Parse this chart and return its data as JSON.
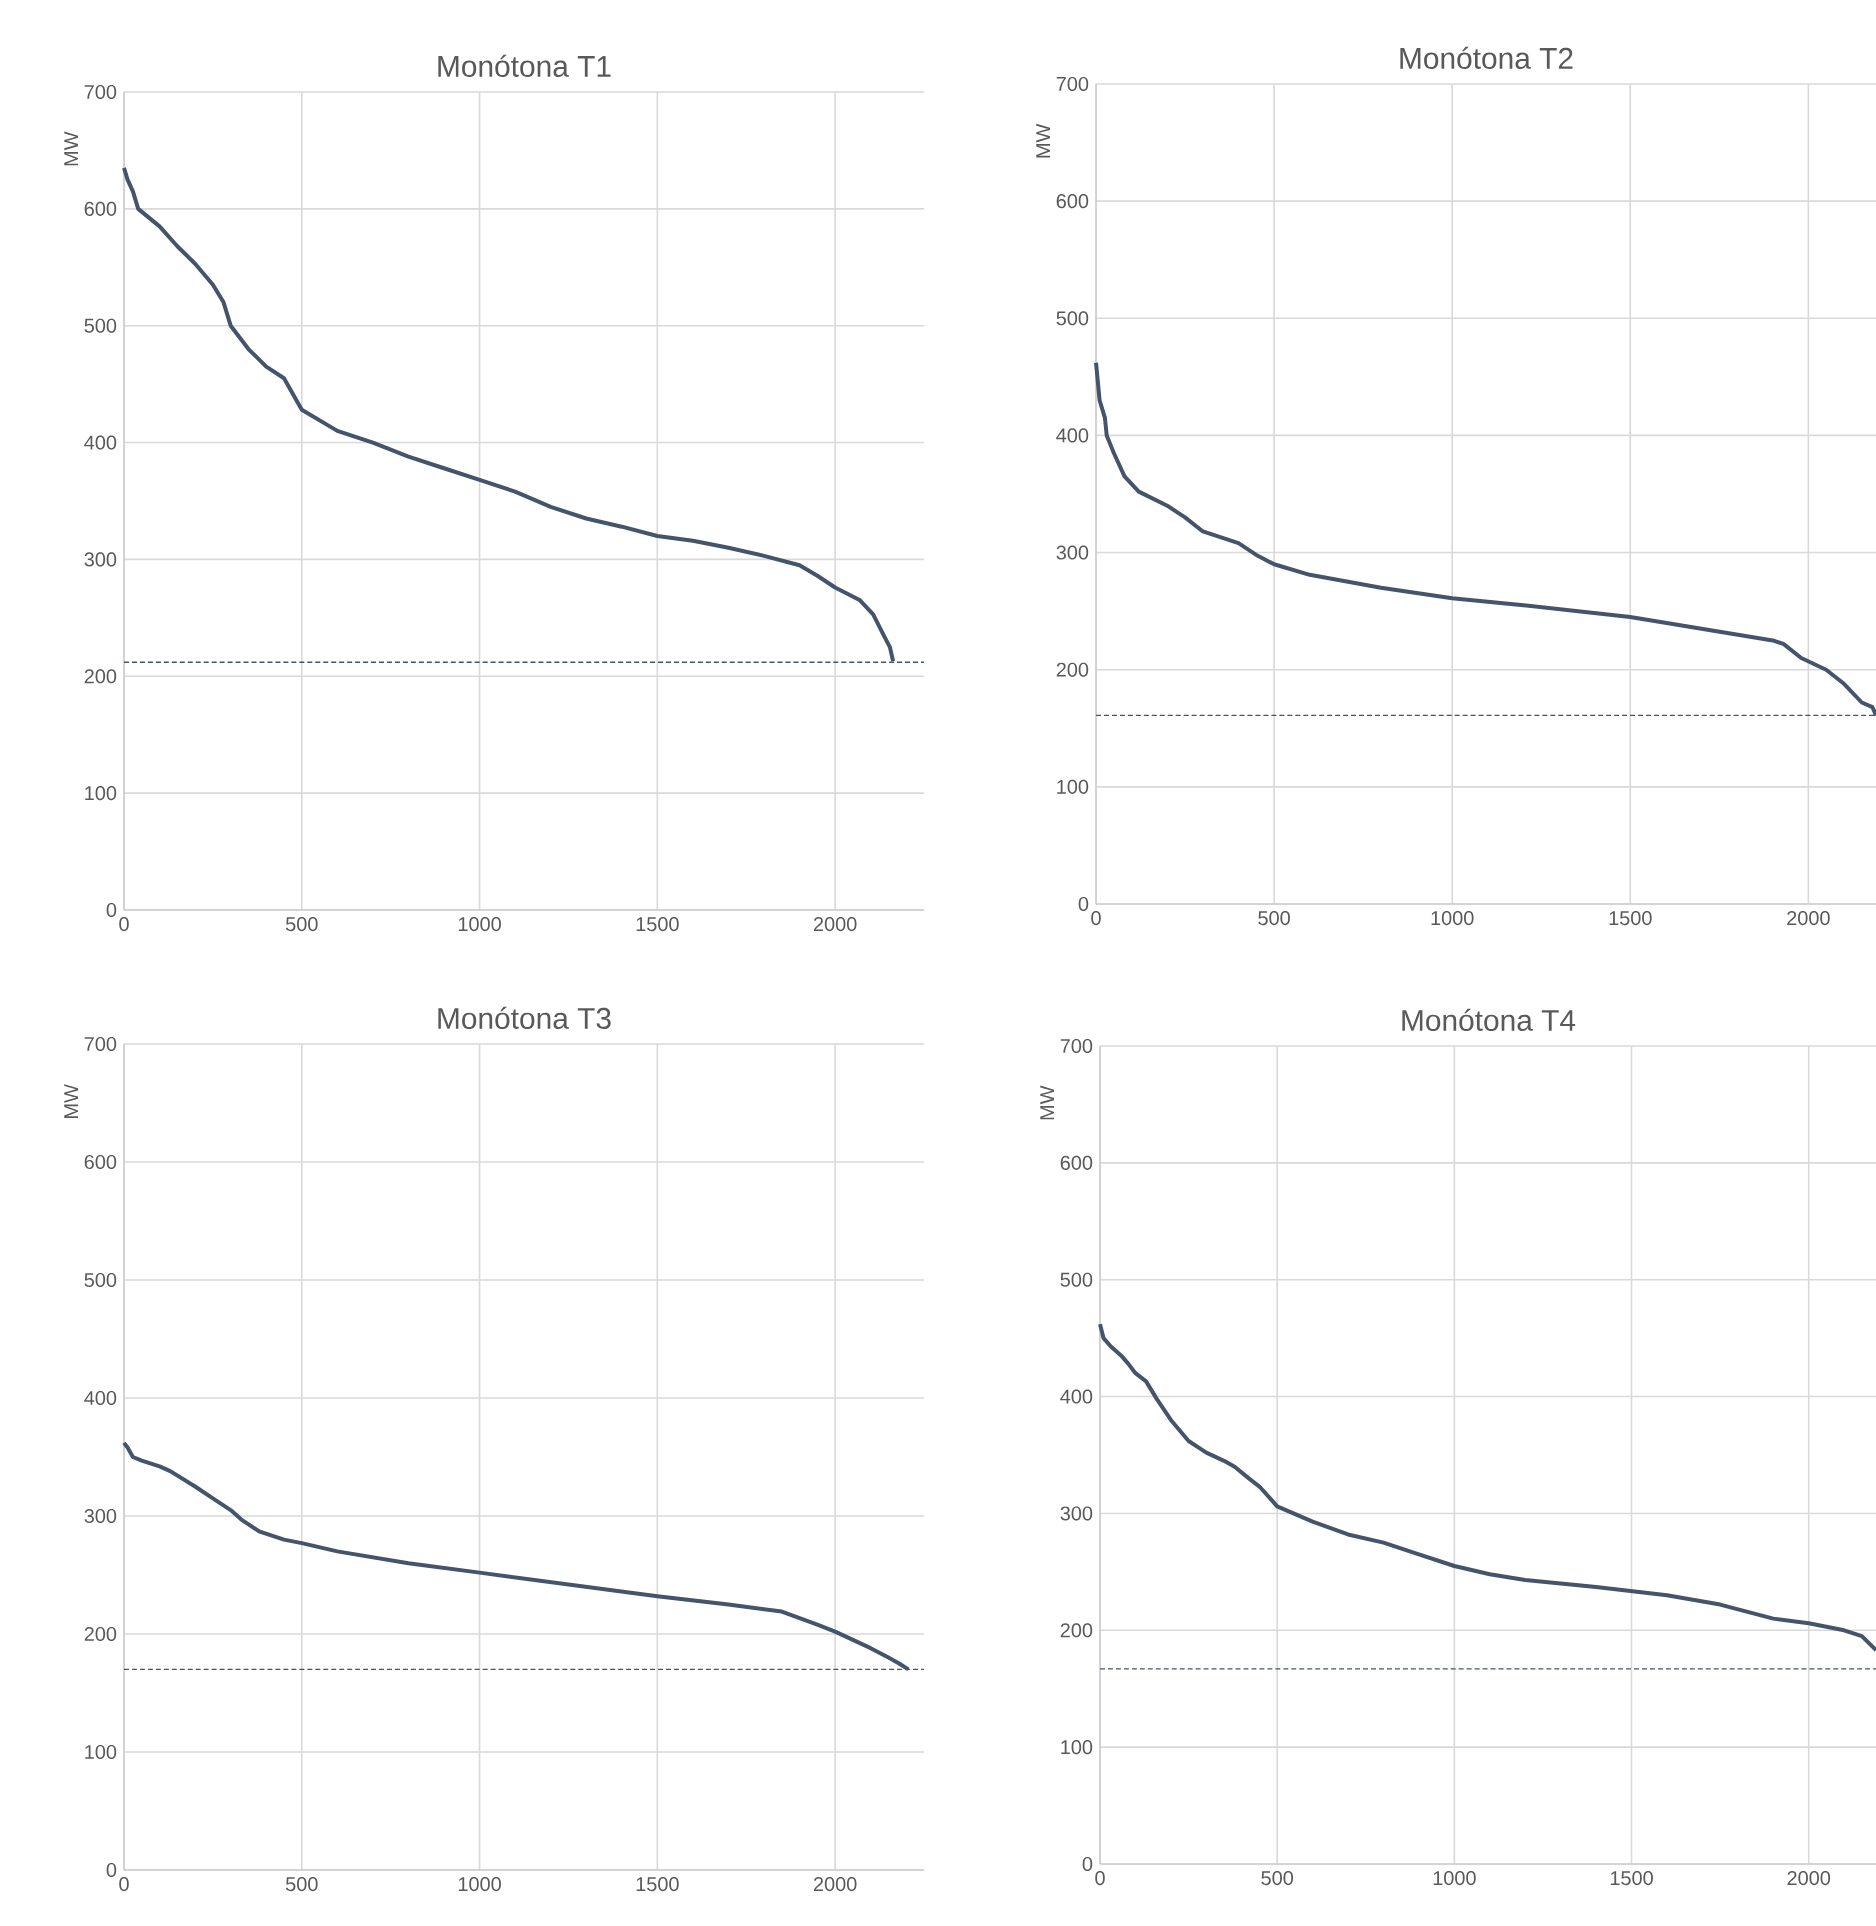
{
  "chart_data": [
    {
      "type": "line",
      "title": "Monótona T1",
      "ylabel": "MW",
      "xlim": [
        0,
        2250
      ],
      "ylim": [
        0,
        700
      ],
      "xticks": [
        0,
        500,
        1000,
        1500,
        2000
      ],
      "yticks": [
        0,
        100,
        200,
        300,
        400,
        500,
        600,
        700
      ],
      "grid": true,
      "series": [
        {
          "color": "#44546a",
          "x": [
            0,
            10,
            25,
            40,
            100,
            150,
            200,
            250,
            280,
            300,
            350,
            400,
            450,
            500,
            600,
            700,
            800,
            900,
            1000,
            1100,
            1200,
            1300,
            1400,
            1500,
            1600,
            1700,
            1800,
            1900,
            1950,
            2000,
            2070,
            2107,
            2135,
            2154,
            2163
          ],
          "values": [
            635,
            625,
            615,
            600,
            585,
            568,
            553,
            535,
            520,
            500,
            480,
            465,
            455,
            428,
            410,
            400,
            388,
            378,
            368,
            358,
            345,
            335,
            328,
            320,
            316,
            310,
            303,
            295,
            286,
            276,
            265,
            253,
            236,
            225,
            213
          ]
        }
      ],
      "ref_lines": [
        {
          "axis": "y",
          "value": 212,
          "color": "#44546a",
          "line_style": "dashed"
        }
      ]
    },
    {
      "type": "line",
      "title": "Monótona T2",
      "ylabel": "MW",
      "xlim": [
        0,
        2190
      ],
      "ylim": [
        0,
        700
      ],
      "xticks": [
        0,
        500,
        1000,
        1500,
        2000
      ],
      "yticks": [
        0,
        100,
        200,
        300,
        400,
        500,
        600,
        700
      ],
      "grid": true,
      "series": [
        {
          "color": "#44546a",
          "x": [
            0,
            10,
            25,
            30,
            50,
            80,
            120,
            200,
            250,
            300,
            400,
            450,
            500,
            600,
            800,
            1000,
            1200,
            1500,
            1700,
            1800,
            1900,
            1930,
            1980,
            2050,
            2100,
            2150,
            2180,
            2190
          ],
          "values": [
            462,
            430,
            415,
            400,
            385,
            365,
            352,
            340,
            330,
            318,
            308,
            298,
            290,
            281,
            270,
            261,
            255,
            245,
            235,
            230,
            225,
            222,
            210,
            200,
            188,
            172,
            168,
            161
          ]
        }
      ],
      "ref_lines": [
        {
          "axis": "y",
          "value": 161,
          "color": "#44546a",
          "line_style": "dashed"
        }
      ]
    },
    {
      "type": "line",
      "title": "Monótona T3",
      "ylabel": "MW",
      "xlim": [
        0,
        2250
      ],
      "ylim": [
        0,
        700
      ],
      "xticks": [
        0,
        500,
        1000,
        1500,
        2000
      ],
      "yticks": [
        0,
        100,
        200,
        300,
        400,
        500,
        600,
        700
      ],
      "grid": true,
      "series": [
        {
          "color": "#44546a",
          "x": [
            0,
            10,
            25,
            50,
            100,
            130,
            200,
            250,
            300,
            330,
            380,
            450,
            500,
            600,
            800,
            1000,
            1200,
            1500,
            1700,
            1850,
            1950,
            2000,
            2050,
            2100,
            2150,
            2180,
            2206
          ],
          "values": [
            362,
            358,
            350,
            347,
            342,
            338,
            325,
            315,
            305,
            297,
            287,
            280,
            277,
            270,
            260,
            252,
            244,
            232,
            225,
            219,
            208,
            202,
            195,
            188,
            180,
            175,
            170
          ]
        }
      ],
      "ref_lines": [
        {
          "axis": "y",
          "value": 170,
          "color": "#44546a",
          "line_style": "dashed"
        }
      ]
    },
    {
      "type": "line",
      "title": "Monótona T4",
      "ylabel": "MW",
      "xlim": [
        0,
        2190
      ],
      "ylim": [
        0,
        700
      ],
      "xticks": [
        0,
        500,
        1000,
        1500,
        2000
      ],
      "yticks": [
        0,
        100,
        200,
        300,
        400,
        500,
        600,
        700
      ],
      "grid": true,
      "series": [
        {
          "color": "#44546a",
          "x": [
            0,
            10,
            30,
            60,
            80,
            100,
            130,
            160,
            200,
            250,
            300,
            350,
            380,
            420,
            450,
            500,
            600,
            700,
            800,
            900,
            1000,
            1100,
            1200,
            1400,
            1600,
            1750,
            1900,
            2000,
            2100,
            2150,
            2190
          ],
          "values": [
            462,
            450,
            443,
            435,
            428,
            420,
            413,
            398,
            380,
            362,
            352,
            345,
            340,
            330,
            323,
            306,
            293,
            282,
            275,
            265,
            255,
            248,
            243,
            237,
            230,
            222,
            210,
            206,
            200,
            195,
            183
          ]
        }
      ],
      "ref_lines": [
        {
          "axis": "y",
          "value": 167,
          "color": "#44546a",
          "line_style": "dashed"
        }
      ]
    }
  ]
}
